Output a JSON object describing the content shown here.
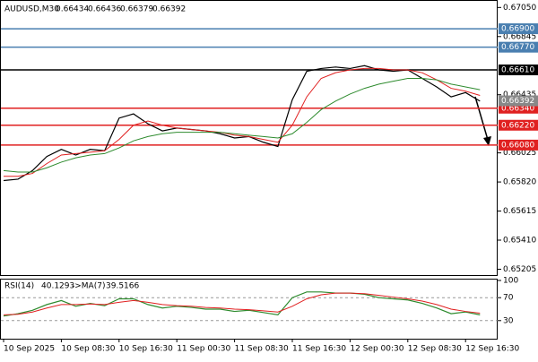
{
  "chart_data": [
    {
      "type": "line",
      "header": {
        "symbol": "AUDUSD,M30",
        "open": 0.66434,
        "high": 0.66436,
        "low": 0.66379,
        "close": 0.66392
      },
      "categories": [
        "10 Sep 2025",
        null,
        null,
        null,
        "10 Sep 08:30",
        null,
        null,
        null,
        "10 Sep 16:30",
        null,
        null,
        null,
        "11 Sep 00:30",
        null,
        null,
        null,
        "11 Sep 08:30",
        null,
        null,
        null,
        "11 Sep 16:30",
        null,
        null,
        null,
        "12 Sep 00:30",
        null,
        null,
        null,
        "12 Sep 08:30",
        null,
        null,
        null,
        "12 Sep 16:30",
        null
      ],
      "series": [
        {
          "color": "#000000",
          "values": [
            0.6583,
            0.6584,
            0.659,
            0.66,
            0.6605,
            0.6601,
            0.6605,
            0.6604,
            0.6627,
            0.663,
            0.6623,
            0.6618,
            0.662,
            0.6619,
            0.6618,
            0.6616,
            0.6613,
            0.6614,
            0.661,
            0.6607,
            0.664,
            0.666,
            0.6662,
            0.6663,
            0.6662,
            0.6664,
            0.6661,
            0.666,
            0.6661,
            0.6655,
            0.6649,
            0.6642,
            0.6645,
            0.6639
          ]
        },
        {
          "color": "#e02020",
          "values": [
            0.6586,
            0.6586,
            0.6588,
            0.6595,
            0.6601,
            0.6602,
            0.6603,
            0.6604,
            0.6612,
            0.6622,
            0.6625,
            0.6622,
            0.662,
            0.6619,
            0.6618,
            0.6617,
            0.6615,
            0.6614,
            0.6612,
            0.661,
            0.6622,
            0.6642,
            0.6655,
            0.6659,
            0.6661,
            0.6662,
            0.6662,
            0.6661,
            0.6661,
            0.6659,
            0.6654,
            0.6648,
            0.6646,
            0.6643
          ]
        },
        {
          "color": "#2e8b2e",
          "values": [
            0.659,
            0.6589,
            0.6589,
            0.6592,
            0.6596,
            0.6599,
            0.6601,
            0.6602,
            0.6606,
            0.6611,
            0.6614,
            0.6616,
            0.6617,
            0.6617,
            0.6617,
            0.6617,
            0.6616,
            0.6615,
            0.6614,
            0.6613,
            0.6616,
            0.6624,
            0.6633,
            0.6639,
            0.6644,
            0.6648,
            0.6651,
            0.6653,
            0.6655,
            0.6655,
            0.6654,
            0.6651,
            0.6649,
            0.6647
          ]
        }
      ],
      "levels": [
        {
          "value": 0.669,
          "label": "0.66900",
          "color": "#4a7fb0"
        },
        {
          "value": 0.6677,
          "label": "0.66770",
          "color": "#4a7fb0"
        },
        {
          "value": 0.6661,
          "label": "0.66610",
          "color": "#000000"
        },
        {
          "value": 0.6634,
          "label": "0.66340",
          "color": "#e02020"
        },
        {
          "value": 0.6622,
          "label": "0.66220",
          "color": "#e02020"
        },
        {
          "value": 0.6608,
          "label": "0.66080",
          "color": "#e02020"
        }
      ],
      "current": {
        "value": 0.66392,
        "label": "0.66392"
      },
      "ylim": [
        0.6517,
        0.6709
      ],
      "yticks": [
        {
          "value": 0.6705,
          "label": "0.67050"
        },
        {
          "value": 0.66845,
          "label": "0.66845"
        },
        {
          "value": 0.66435,
          "label": "0.66435"
        },
        {
          "value": 0.66025,
          "label": "0.66025"
        },
        {
          "value": 0.6582,
          "label": "0.65820"
        },
        {
          "value": 0.65615,
          "label": "0.65615"
        },
        {
          "value": 0.6541,
          "label": "0.65410"
        },
        {
          "value": 0.65205,
          "label": "0.65205"
        }
      ]
    },
    {
      "type": "line",
      "header": {
        "name": "RSI(14)",
        "value": 40.1293,
        "ma_name": "->MA(7)",
        "ma_value": 39.5166
      },
      "series": [
        {
          "color": "#2e8b2e",
          "values": [
            38,
            42,
            48,
            58,
            65,
            55,
            60,
            56,
            68,
            68,
            58,
            52,
            55,
            53,
            50,
            50,
            46,
            48,
            44,
            40,
            70,
            80,
            80,
            78,
            78,
            76,
            70,
            68,
            66,
            60,
            52,
            42,
            45,
            40
          ]
        },
        {
          "color": "#e02020",
          "values": [
            40,
            41,
            45,
            52,
            58,
            58,
            59,
            58,
            62,
            65,
            62,
            58,
            56,
            55,
            53,
            52,
            50,
            49,
            47,
            45,
            55,
            68,
            75,
            78,
            78,
            77,
            74,
            71,
            68,
            64,
            58,
            50,
            46,
            43
          ]
        }
      ],
      "ylim": [
        0,
        100
      ],
      "yticks": [
        100,
        70,
        30
      ],
      "levels": [
        70,
        30
      ]
    }
  ]
}
